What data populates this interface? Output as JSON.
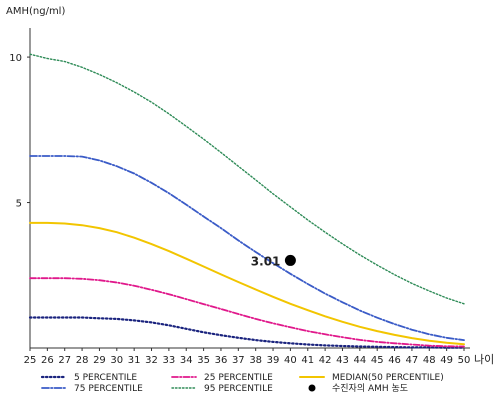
{
  "chart_data": {
    "type": "line",
    "title": "",
    "ylabel": "AMH(ng/ml)",
    "xlabel": "나이",
    "xlim": [
      25,
      50
    ],
    "ylim": [
      0,
      11
    ],
    "yticks": [
      5,
      10
    ],
    "x": [
      25,
      26,
      27,
      28,
      29,
      30,
      31,
      32,
      33,
      34,
      35,
      36,
      37,
      38,
      39,
      40,
      41,
      42,
      43,
      44,
      45,
      46,
      47,
      48,
      49,
      50
    ],
    "grid": false,
    "legend_position": "bottom",
    "series": [
      {
        "name": "5 PERCENTILE",
        "color": "#1a237e",
        "dash": "1.5,2.5",
        "width": 2.2,
        "points": [
          [
            25,
            1.05
          ],
          [
            26,
            1.05
          ],
          [
            27,
            1.05
          ],
          [
            28,
            1.05
          ],
          [
            29,
            1.02
          ],
          [
            30,
            1.0
          ],
          [
            31,
            0.95
          ],
          [
            32,
            0.88
          ],
          [
            33,
            0.78
          ],
          [
            34,
            0.66
          ],
          [
            35,
            0.54
          ],
          [
            36,
            0.44
          ],
          [
            37,
            0.35
          ],
          [
            38,
            0.27
          ],
          [
            39,
            0.21
          ],
          [
            40,
            0.16
          ],
          [
            41,
            0.12
          ],
          [
            42,
            0.09
          ],
          [
            43,
            0.07
          ],
          [
            44,
            0.05
          ],
          [
            45,
            0.04
          ],
          [
            46,
            0.03
          ],
          [
            47,
            0.02
          ],
          [
            48,
            0.02
          ],
          [
            49,
            0.01
          ],
          [
            50,
            0.01
          ]
        ]
      },
      {
        "name": "25 PERCENTILE",
        "color": "#e0188b",
        "dash": "6,2,1.5,2",
        "width": 1.8,
        "points": [
          [
            25,
            2.4
          ],
          [
            26,
            2.4
          ],
          [
            27,
            2.4
          ],
          [
            28,
            2.38
          ],
          [
            29,
            2.33
          ],
          [
            30,
            2.25
          ],
          [
            31,
            2.14
          ],
          [
            32,
            2.0
          ],
          [
            33,
            1.85
          ],
          [
            34,
            1.68
          ],
          [
            35,
            1.51
          ],
          [
            36,
            1.34
          ],
          [
            37,
            1.17
          ],
          [
            38,
            1.0
          ],
          [
            39,
            0.85
          ],
          [
            40,
            0.71
          ],
          [
            41,
            0.58
          ],
          [
            42,
            0.47
          ],
          [
            43,
            0.37
          ],
          [
            44,
            0.28
          ],
          [
            45,
            0.21
          ],
          [
            46,
            0.16
          ],
          [
            47,
            0.12
          ],
          [
            48,
            0.08
          ],
          [
            49,
            0.06
          ],
          [
            50,
            0.05
          ]
        ]
      },
      {
        "name": "MEDIAN(50 PERCENTILE)",
        "color": "#f2c500",
        "dash": "",
        "width": 2.0,
        "points": [
          [
            25,
            4.3
          ],
          [
            26,
            4.3
          ],
          [
            27,
            4.28
          ],
          [
            28,
            4.22
          ],
          [
            29,
            4.12
          ],
          [
            30,
            3.98
          ],
          [
            31,
            3.79
          ],
          [
            32,
            3.57
          ],
          [
            33,
            3.33
          ],
          [
            34,
            3.07
          ],
          [
            35,
            2.8
          ],
          [
            36,
            2.53
          ],
          [
            37,
            2.27
          ],
          [
            38,
            2.01
          ],
          [
            39,
            1.76
          ],
          [
            40,
            1.52
          ],
          [
            41,
            1.3
          ],
          [
            42,
            1.09
          ],
          [
            43,
            0.9
          ],
          [
            44,
            0.73
          ],
          [
            45,
            0.58
          ],
          [
            46,
            0.45
          ],
          [
            47,
            0.34
          ],
          [
            48,
            0.25
          ],
          [
            49,
            0.18
          ],
          [
            50,
            0.13
          ]
        ]
      },
      {
        "name": "75 PERCENTILE",
        "color": "#3a5bc7",
        "dash": "7,2,1.5,2",
        "width": 1.8,
        "points": [
          [
            25,
            6.6
          ],
          [
            26,
            6.6
          ],
          [
            27,
            6.6
          ],
          [
            28,
            6.58
          ],
          [
            29,
            6.45
          ],
          [
            30,
            6.25
          ],
          [
            31,
            6.0
          ],
          [
            32,
            5.68
          ],
          [
            33,
            5.32
          ],
          [
            34,
            4.93
          ],
          [
            35,
            4.52
          ],
          [
            36,
            4.12
          ],
          [
            37,
            3.7
          ],
          [
            38,
            3.3
          ],
          [
            39,
            2.92
          ],
          [
            40,
            2.55
          ],
          [
            41,
            2.2
          ],
          [
            42,
            1.87
          ],
          [
            43,
            1.57
          ],
          [
            44,
            1.29
          ],
          [
            45,
            1.04
          ],
          [
            46,
            0.82
          ],
          [
            47,
            0.63
          ],
          [
            48,
            0.47
          ],
          [
            49,
            0.35
          ],
          [
            50,
            0.27
          ]
        ]
      },
      {
        "name": "95 PERCENTILE",
        "color": "#2e8b57",
        "dash": "1.5,2",
        "width": 1.4,
        "points": [
          [
            25,
            10.1
          ],
          [
            26,
            9.95
          ],
          [
            27,
            9.85
          ],
          [
            28,
            9.65
          ],
          [
            29,
            9.4
          ],
          [
            30,
            9.12
          ],
          [
            31,
            8.8
          ],
          [
            32,
            8.45
          ],
          [
            33,
            8.05
          ],
          [
            34,
            7.62
          ],
          [
            35,
            7.18
          ],
          [
            36,
            6.72
          ],
          [
            37,
            6.25
          ],
          [
            38,
            5.78
          ],
          [
            39,
            5.3
          ],
          [
            40,
            4.85
          ],
          [
            41,
            4.4
          ],
          [
            42,
            3.98
          ],
          [
            43,
            3.58
          ],
          [
            44,
            3.2
          ],
          [
            45,
            2.85
          ],
          [
            46,
            2.52
          ],
          [
            47,
            2.22
          ],
          [
            48,
            1.96
          ],
          [
            49,
            1.72
          ],
          [
            50,
            1.52
          ]
        ]
      }
    ],
    "highlight": {
      "name": "수진자의 AMH 농도",
      "x": 40,
      "y": 3.01,
      "label": "3.01",
      "color": "#000000"
    }
  }
}
